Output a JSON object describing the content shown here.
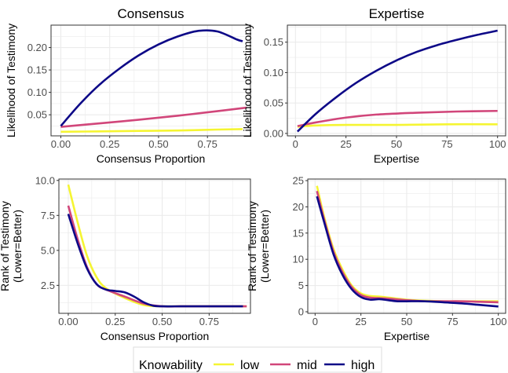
{
  "colors": {
    "low": "#f5f532",
    "mid": "#d1467a",
    "high": "#0d0887",
    "grid": "#ebebeb",
    "panel_border": "#333333"
  },
  "legend": {
    "title": "Knowability",
    "placement": "bottom",
    "items": [
      {
        "key": "low",
        "label": "low"
      },
      {
        "key": "mid",
        "label": "mid"
      },
      {
        "key": "high",
        "label": "high"
      }
    ]
  },
  "chart_data": [
    {
      "type": "line",
      "title": "Consensus",
      "xlabel": "Consensus Proportion",
      "ylabel": "Likelihood of Testimony",
      "xlim": [
        -0.05,
        0.97
      ],
      "ylim": [
        0.003,
        0.25
      ],
      "xticks": [
        0,
        0.25,
        0.5,
        0.75
      ],
      "xtick_labels": [
        "0.00",
        "0.25",
        "0.50",
        "0.75"
      ],
      "yticks": [
        0.05,
        0.1,
        0.15,
        0.2
      ],
      "ytick_labels": [
        "0.05",
        "0.10",
        "0.15",
        "0.20"
      ],
      "grid": true,
      "series": [
        {
          "key": "low",
          "x": [
            0,
            0.2,
            0.4,
            0.6,
            0.8,
            0.93
          ],
          "y": [
            0.012,
            0.013,
            0.014,
            0.015,
            0.017,
            0.018
          ]
        },
        {
          "key": "mid",
          "x": [
            0,
            0.2,
            0.4,
            0.6,
            0.8,
            0.95
          ],
          "y": [
            0.023,
            0.031,
            0.039,
            0.048,
            0.058,
            0.066
          ]
        },
        {
          "key": "high",
          "x": [
            0,
            0.1,
            0.2,
            0.3,
            0.4,
            0.5,
            0.6,
            0.7,
            0.8,
            0.9,
            0.93
          ],
          "y": [
            0.025,
            0.075,
            0.118,
            0.153,
            0.183,
            0.207,
            0.225,
            0.237,
            0.236,
            0.218,
            0.214
          ]
        }
      ]
    },
    {
      "type": "line",
      "title": "Expertise",
      "xlabel": "Expertise",
      "ylabel": "Likelihood of Testimony",
      "xlim": [
        -4,
        104
      ],
      "ylim": [
        -0.004,
        0.178
      ],
      "xticks": [
        0,
        25,
        50,
        75,
        100
      ],
      "xtick_labels": [
        "0",
        "25",
        "50",
        "75",
        "100"
      ],
      "yticks": [
        0,
        0.05,
        0.1,
        0.15
      ],
      "ytick_labels": [
        "0.00",
        "0.05",
        "0.10",
        "0.15"
      ],
      "grid": true,
      "series": [
        {
          "key": "low",
          "x": [
            1,
            10,
            25,
            50,
            75,
            100
          ],
          "y": [
            0.011,
            0.013,
            0.014,
            0.014,
            0.015,
            0.015
          ]
        },
        {
          "key": "mid",
          "x": [
            1,
            10,
            25,
            40,
            60,
            80,
            100
          ],
          "y": [
            0.012,
            0.018,
            0.026,
            0.031,
            0.034,
            0.036,
            0.037
          ]
        },
        {
          "key": "high",
          "x": [
            1,
            10,
            20,
            30,
            40,
            50,
            60,
            70,
            80,
            90,
            100
          ],
          "y": [
            0.003,
            0.032,
            0.059,
            0.083,
            0.103,
            0.12,
            0.134,
            0.145,
            0.154,
            0.162,
            0.169
          ]
        }
      ]
    },
    {
      "type": "line",
      "title": "",
      "xlabel": "Consensus Proportion",
      "ylabel": "Rank of Testimony\n(Lower=Better)",
      "xlim": [
        -0.05,
        0.97
      ],
      "ylim": [
        0.5,
        10.1
      ],
      "xticks": [
        0,
        0.25,
        0.5,
        0.75
      ],
      "xtick_labels": [
        "0.00",
        "0.25",
        "0.50",
        "0.75"
      ],
      "yticks": [
        2.5,
        5,
        7.5,
        10
      ],
      "ytick_labels": [
        "2.5",
        "5.0",
        "7.5",
        "10.0"
      ],
      "grid": true,
      "series": [
        {
          "key": "low",
          "x": [
            0,
            0.05,
            0.1,
            0.15,
            0.2,
            0.3,
            0.4,
            0.5,
            0.6,
            0.7,
            0.8,
            0.9,
            0.95
          ],
          "y": [
            9.7,
            7.0,
            4.6,
            3.1,
            2.3,
            1.6,
            1.1,
            1.0,
            1.0,
            1.0,
            1.0,
            1.0,
            1.0
          ]
        },
        {
          "key": "mid",
          "x": [
            0,
            0.05,
            0.1,
            0.15,
            0.2,
            0.3,
            0.4,
            0.5,
            0.6,
            0.7,
            0.8,
            0.9,
            0.95
          ],
          "y": [
            8.2,
            5.8,
            3.8,
            2.6,
            2.2,
            1.7,
            1.2,
            1.0,
            1.0,
            1.0,
            1.0,
            1.0,
            1.0
          ]
        },
        {
          "key": "high",
          "x": [
            0,
            0.05,
            0.1,
            0.15,
            0.2,
            0.25,
            0.3,
            0.35,
            0.4,
            0.45,
            0.5,
            0.6,
            0.7,
            0.8,
            0.93
          ],
          "y": [
            7.6,
            5.5,
            3.7,
            2.6,
            2.2,
            2.1,
            2.0,
            1.7,
            1.3,
            1.05,
            1.0,
            1.0,
            1.0,
            1.0,
            1.0
          ]
        }
      ]
    },
    {
      "type": "line",
      "title": "",
      "xlabel": "Expertise",
      "ylabel": "Rank of Testimony\n(Lower=Better)",
      "xlim": [
        -4,
        104
      ],
      "ylim": [
        -0.3,
        25.3
      ],
      "xticks": [
        0,
        25,
        50,
        75,
        100
      ],
      "xtick_labels": [
        "0",
        "25",
        "50",
        "75",
        "100"
      ],
      "yticks": [
        0,
        5,
        10,
        15,
        20,
        25
      ],
      "ytick_labels": [
        "0",
        "5",
        "10",
        "15",
        "20",
        "25"
      ],
      "grid": true,
      "series": [
        {
          "key": "low",
          "x": [
            1,
            5,
            10,
            15,
            20,
            25,
            30,
            35,
            40,
            50,
            60,
            70,
            80,
            90,
            100
          ],
          "y": [
            24,
            18,
            12,
            8,
            5,
            3.5,
            3.0,
            2.9,
            2.7,
            2.3,
            2.1,
            2.0,
            2.0,
            2.0,
            2.0
          ]
        },
        {
          "key": "mid",
          "x": [
            1,
            5,
            10,
            15,
            20,
            25,
            30,
            35,
            40,
            50,
            60,
            70,
            80,
            90,
            100
          ],
          "y": [
            23,
            17.5,
            11.5,
            7.5,
            4.7,
            3.2,
            2.7,
            2.6,
            2.5,
            2.2,
            2.0,
            2.0,
            2.0,
            1.9,
            1.8
          ]
        },
        {
          "key": "high",
          "x": [
            1,
            5,
            10,
            15,
            20,
            25,
            30,
            35,
            40,
            45,
            50,
            60,
            70,
            80,
            90,
            100
          ],
          "y": [
            22,
            17,
            11,
            7,
            4.3,
            2.8,
            2.3,
            2.4,
            2.2,
            2.0,
            2.0,
            2.0,
            1.8,
            1.6,
            1.3,
            1.0
          ]
        }
      ]
    }
  ]
}
